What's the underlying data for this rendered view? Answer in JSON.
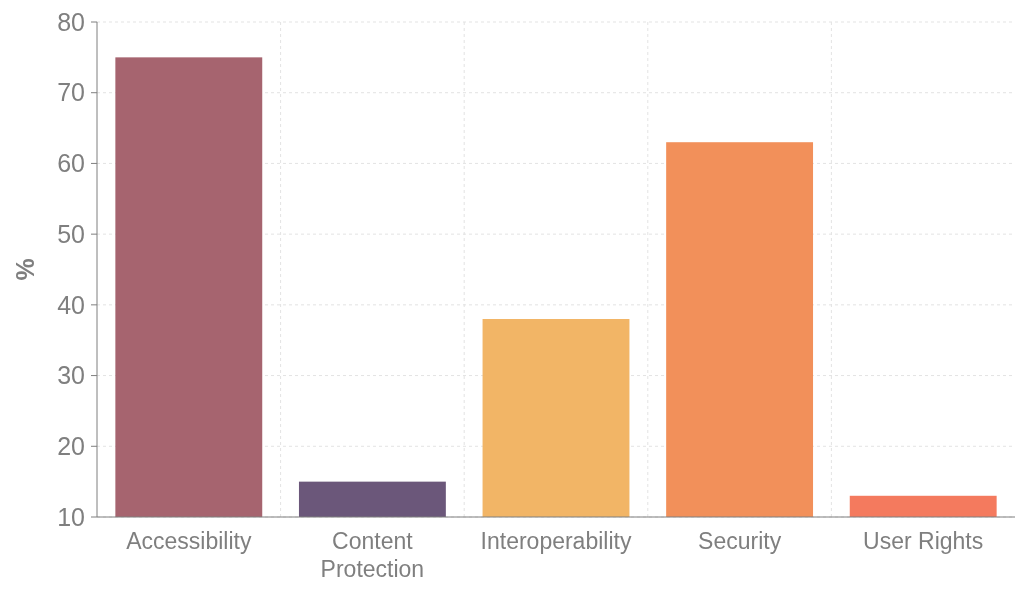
{
  "chart_data": {
    "type": "bar",
    "ylabel": "%",
    "categories": [
      "Accessibility",
      "Content Protection",
      "Interoperability",
      "Security",
      "User Rights"
    ],
    "values": [
      75,
      15,
      38,
      63,
      13
    ],
    "colors": [
      "#a6646f",
      "#6b577a",
      "#f2b566",
      "#f2905a",
      "#f47a5e"
    ],
    "ylim": [
      10,
      80
    ],
    "yticks": [
      10,
      20,
      30,
      40,
      50,
      60,
      70,
      80
    ],
    "grid": true
  }
}
